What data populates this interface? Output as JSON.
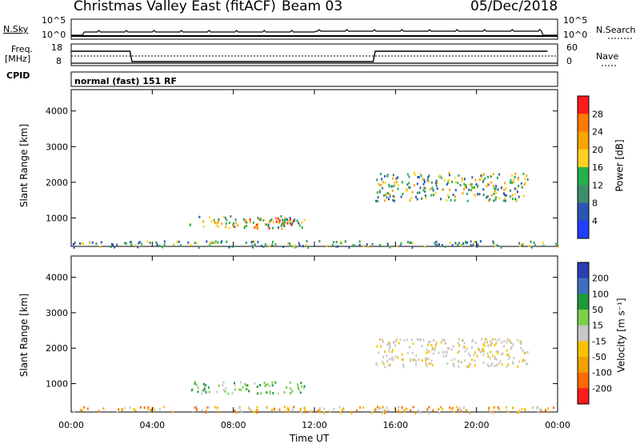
{
  "header": {
    "title": "Christmas Valley East (fitACF)",
    "beam": "Beam 03",
    "date": "05/Dec/2018"
  },
  "strip_panels": {
    "nsky_label": "N.Sky",
    "nsearch_label": "N.Search",
    "freq_label_line1": "Freq.",
    "freq_label_line2": "[MHz]",
    "nave_label": "Nave",
    "cpid_label": "CPID",
    "mode_text": "normal (fast) 151 RF",
    "nsky_ticks": [
      "10^5",
      "10^0"
    ],
    "nsearch_ticks": [
      "10^5",
      "10^0"
    ],
    "freq_ticks": [
      "18",
      "8"
    ],
    "nave_ticks": [
      "60",
      "0"
    ]
  },
  "chart_data": [
    {
      "type": "heatmap",
      "name": "power",
      "ylabel": "Slant Range [km]",
      "colorbar_label": "Power [dB]",
      "colorbar_ticks": [
        "28",
        "24",
        "20",
        "16",
        "12",
        "8",
        "4"
      ],
      "colorbar_colors": [
        "#ff1a1a",
        "#ff7a00",
        "#f7a600",
        "#ffd21f",
        "#22b14c",
        "#3d8c6a",
        "#2b55b5",
        "#1f3fff"
      ],
      "yticks": [
        "1000",
        "2000",
        "3000",
        "4000"
      ],
      "ylim": [
        200,
        4600
      ],
      "xlim": [
        0,
        24
      ],
      "regions": [
        {
          "x0": 5.8,
          "x1": 11.5,
          "y0": 750,
          "y1": 1080,
          "level": "mid"
        },
        {
          "x0": 8.5,
          "x1": 11.0,
          "y0": 720,
          "y1": 1050,
          "level": "high"
        },
        {
          "x0": 15.0,
          "x1": 22.5,
          "y0": 1500,
          "y1": 2300,
          "level": "mid"
        },
        {
          "x0": 0.0,
          "x1": 24.0,
          "y0": 200,
          "y1": 380,
          "level": "low"
        }
      ]
    },
    {
      "type": "heatmap",
      "name": "velocity",
      "ylabel": "Slant Range [km]",
      "colorbar_label": "Velocity [m s⁻¹]",
      "colorbar_ticks": [
        "200",
        "100",
        "50",
        "15",
        "-15",
        "-50",
        "-100",
        "-200"
      ],
      "colorbar_colors": [
        "#2b3fb5",
        "#3d6fc0",
        "#1f9a3a",
        "#7ad04a",
        "#c8c8c8",
        "#f7c200",
        "#f0a000",
        "#ff6a00",
        "#ff1a1a"
      ],
      "yticks": [
        "1000",
        "2000",
        "3000",
        "4000"
      ],
      "ylim": [
        200,
        4600
      ],
      "xlim": [
        0,
        24
      ],
      "xticks": [
        "00:00",
        "04:00",
        "08:00",
        "12:00",
        "16:00",
        "20:00",
        "00:00"
      ],
      "xlabel": "Time UT",
      "regions": [
        {
          "x0": 5.8,
          "x1": 11.5,
          "y0": 750,
          "y1": 1080,
          "level": "green"
        },
        {
          "x0": 15.0,
          "x1": 22.5,
          "y0": 1500,
          "y1": 2300,
          "level": "gray"
        },
        {
          "x0": 0.0,
          "x1": 24.0,
          "y0": 200,
          "y1": 380,
          "level": "orange"
        }
      ]
    }
  ]
}
